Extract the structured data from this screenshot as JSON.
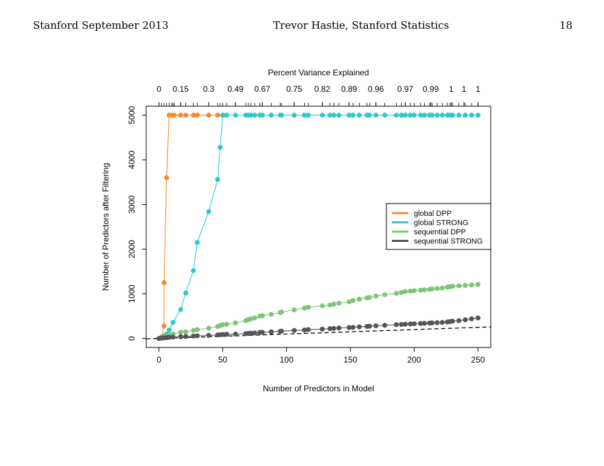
{
  "slide": {
    "header_left": "Stanford September 2013",
    "header_center": "Trevor Hastie, Stanford Statistics",
    "page_number": "18"
  },
  "chart_data": {
    "type": "scatter",
    "xlabel": "Number of Predictors in Model",
    "ylabel": "Number of Predictors after Filtering",
    "top_axis_title": "Percent Variance Explained",
    "xlim": [
      -10,
      260
    ],
    "ylim": [
      -200,
      5200
    ],
    "x_ticks": [
      "0",
      "50",
      "100",
      "150",
      "200",
      "250"
    ],
    "y_ticks": [
      "0",
      "1000",
      "2000",
      "3000",
      "4000",
      "5000"
    ],
    "top_ticks": [
      {
        "x": 0,
        "label": "0"
      },
      {
        "x": 17,
        "label": "0.15"
      },
      {
        "x": 39,
        "label": "0.3"
      },
      {
        "x": 60,
        "label": "0.49"
      },
      {
        "x": 81,
        "label": "0.67"
      },
      {
        "x": 106,
        "label": "0.75"
      },
      {
        "x": 128,
        "label": "0.82"
      },
      {
        "x": 149,
        "label": "0.89"
      },
      {
        "x": 170,
        "label": "0.96"
      },
      {
        "x": 193,
        "label": "0.97"
      },
      {
        "x": 213,
        "label": "0.99"
      },
      {
        "x": 229,
        "label": "1"
      },
      {
        "x": 239,
        "label": "1"
      },
      {
        "x": 250,
        "label": "1"
      }
    ],
    "legend_position": "center-right",
    "dashed_reference_line": {
      "slope": 1,
      "intercept": 0
    },
    "series": [
      {
        "name": "global DPP",
        "color": "#F58A2E",
        "points": [
          [
            0,
            0
          ],
          [
            2,
            30
          ],
          [
            4,
            280
          ],
          [
            4,
            1250
          ],
          [
            6,
            3600
          ],
          [
            8,
            5000
          ],
          [
            10,
            5000
          ],
          [
            12,
            5000
          ],
          [
            17,
            5000
          ],
          [
            21,
            5000
          ],
          [
            27,
            5000
          ],
          [
            30,
            5000
          ],
          [
            39,
            5000
          ],
          [
            46,
            5000
          ],
          [
            50,
            5000
          ]
        ]
      },
      {
        "name": "global STRONG",
        "color": "#2EC9C9",
        "points": [
          [
            0,
            0
          ],
          [
            2,
            20
          ],
          [
            4,
            60
          ],
          [
            6,
            100
          ],
          [
            8,
            190
          ],
          [
            11,
            360
          ],
          [
            17,
            650
          ],
          [
            21,
            1020
          ],
          [
            27,
            1520
          ],
          [
            30,
            2150
          ],
          [
            39,
            2840
          ],
          [
            46,
            3560
          ],
          [
            48,
            4280
          ],
          [
            50,
            5000
          ],
          [
            53,
            5000
          ],
          [
            60,
            5000
          ],
          [
            68,
            5000
          ],
          [
            70,
            5000
          ],
          [
            72,
            5000
          ],
          [
            75,
            5000
          ],
          [
            79,
            5000
          ],
          [
            81,
            5000
          ],
          [
            88,
            5000
          ],
          [
            95,
            5000
          ],
          [
            96,
            5000
          ],
          [
            106,
            5000
          ],
          [
            114,
            5000
          ],
          [
            117,
            5000
          ],
          [
            128,
            5000
          ],
          [
            134,
            5000
          ],
          [
            137,
            5000
          ],
          [
            141,
            5000
          ],
          [
            149,
            5000
          ],
          [
            152,
            5000
          ],
          [
            157,
            5000
          ],
          [
            163,
            5000
          ],
          [
            165,
            5000
          ],
          [
            170,
            5000
          ],
          [
            177,
            5000
          ],
          [
            186,
            5000
          ],
          [
            190,
            5000
          ],
          [
            193,
            5000
          ],
          [
            197,
            5000
          ],
          [
            200,
            5000
          ],
          [
            205,
            5000
          ],
          [
            208,
            5000
          ],
          [
            212,
            5000
          ],
          [
            214,
            5000
          ],
          [
            218,
            5000
          ],
          [
            222,
            5000
          ],
          [
            226,
            5000
          ],
          [
            228,
            5000
          ],
          [
            230,
            5000
          ],
          [
            235,
            5000
          ],
          [
            240,
            5000
          ],
          [
            245,
            5000
          ],
          [
            250,
            5000
          ]
        ]
      },
      {
        "name": "sequential DPP",
        "color": "#7CC576",
        "points": [
          [
            0,
            0
          ],
          [
            2,
            20
          ],
          [
            4,
            40
          ],
          [
            6,
            60
          ],
          [
            8,
            80
          ],
          [
            11,
            100
          ],
          [
            17,
            140
          ],
          [
            21,
            150
          ],
          [
            27,
            180
          ],
          [
            30,
            200
          ],
          [
            39,
            230
          ],
          [
            46,
            270
          ],
          [
            48,
            290
          ],
          [
            50,
            310
          ],
          [
            53,
            320
          ],
          [
            60,
            350
          ],
          [
            68,
            400
          ],
          [
            70,
            420
          ],
          [
            72,
            440
          ],
          [
            75,
            460
          ],
          [
            79,
            500
          ],
          [
            81,
            510
          ],
          [
            88,
            540
          ],
          [
            95,
            580
          ],
          [
            96,
            590
          ],
          [
            106,
            640
          ],
          [
            114,
            680
          ],
          [
            117,
            700
          ],
          [
            128,
            730
          ],
          [
            134,
            750
          ],
          [
            137,
            770
          ],
          [
            141,
            790
          ],
          [
            149,
            820
          ],
          [
            152,
            850
          ],
          [
            157,
            880
          ],
          [
            163,
            910
          ],
          [
            165,
            920
          ],
          [
            170,
            950
          ],
          [
            177,
            980
          ],
          [
            186,
            1010
          ],
          [
            190,
            1030
          ],
          [
            193,
            1050
          ],
          [
            197,
            1060
          ],
          [
            200,
            1070
          ],
          [
            205,
            1080
          ],
          [
            208,
            1090
          ],
          [
            212,
            1100
          ],
          [
            214,
            1110
          ],
          [
            218,
            1120
          ],
          [
            222,
            1130
          ],
          [
            226,
            1150
          ],
          [
            228,
            1160
          ],
          [
            230,
            1170
          ],
          [
            235,
            1180
          ],
          [
            240,
            1190
          ],
          [
            245,
            1200
          ],
          [
            250,
            1210
          ]
        ]
      },
      {
        "name": "sequential STRONG",
        "color": "#555555",
        "points": [
          [
            0,
            0
          ],
          [
            2,
            10
          ],
          [
            4,
            15
          ],
          [
            6,
            20
          ],
          [
            8,
            25
          ],
          [
            11,
            30
          ],
          [
            17,
            40
          ],
          [
            21,
            45
          ],
          [
            27,
            55
          ],
          [
            30,
            60
          ],
          [
            39,
            70
          ],
          [
            46,
            80
          ],
          [
            48,
            85
          ],
          [
            50,
            90
          ],
          [
            53,
            95
          ],
          [
            60,
            100
          ],
          [
            68,
            110
          ],
          [
            70,
            115
          ],
          [
            72,
            120
          ],
          [
            75,
            125
          ],
          [
            79,
            135
          ],
          [
            81,
            140
          ],
          [
            88,
            150
          ],
          [
            95,
            160
          ],
          [
            96,
            165
          ],
          [
            106,
            180
          ],
          [
            114,
            190
          ],
          [
            117,
            200
          ],
          [
            128,
            210
          ],
          [
            134,
            220
          ],
          [
            137,
            225
          ],
          [
            141,
            235
          ],
          [
            149,
            245
          ],
          [
            152,
            250
          ],
          [
            157,
            260
          ],
          [
            163,
            270
          ],
          [
            165,
            275
          ],
          [
            170,
            285
          ],
          [
            177,
            295
          ],
          [
            186,
            310
          ],
          [
            190,
            315
          ],
          [
            193,
            320
          ],
          [
            197,
            325
          ],
          [
            200,
            330
          ],
          [
            205,
            335
          ],
          [
            208,
            340
          ],
          [
            212,
            345
          ],
          [
            214,
            350
          ],
          [
            218,
            355
          ],
          [
            222,
            360
          ],
          [
            226,
            370
          ],
          [
            228,
            380
          ],
          [
            230,
            390
          ],
          [
            235,
            400
          ],
          [
            240,
            420
          ],
          [
            245,
            440
          ],
          [
            250,
            460
          ]
        ]
      }
    ]
  }
}
